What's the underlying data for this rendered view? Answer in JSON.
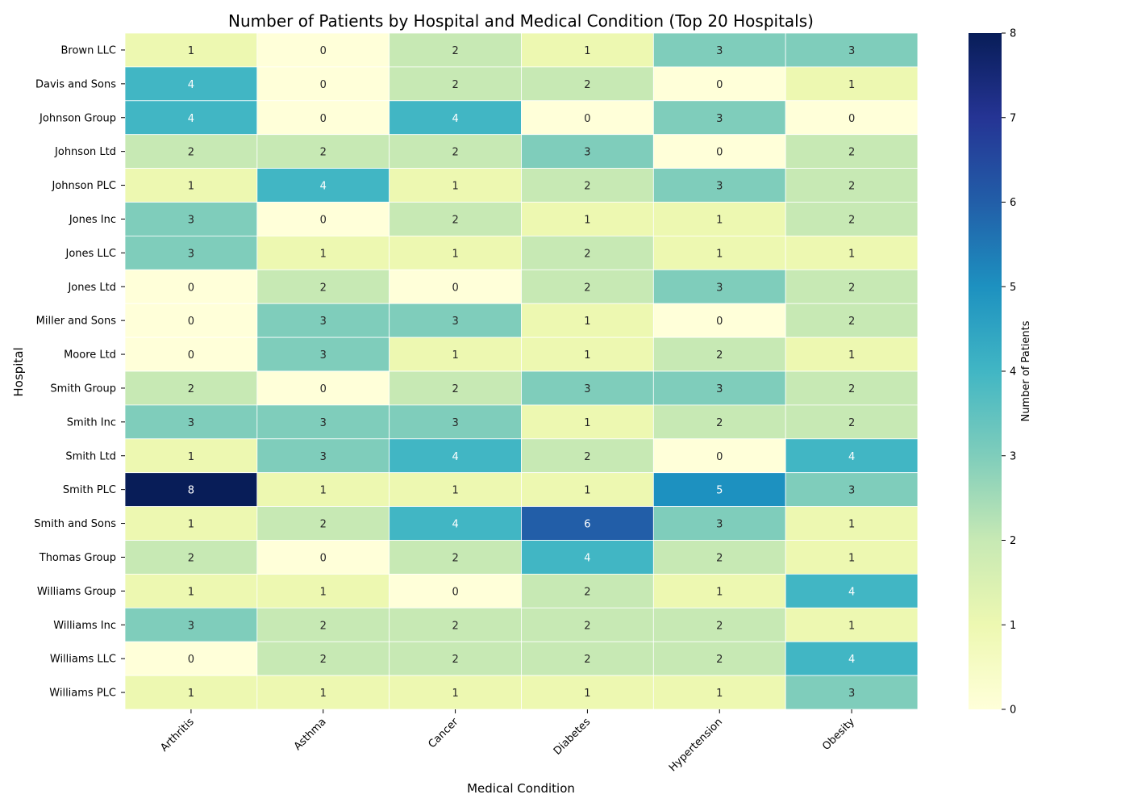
{
  "chart_data": {
    "type": "heatmap",
    "title": "Number of Patients by Hospital and Medical Condition (Top 20 Hospitals)",
    "xlabel": "Medical Condition",
    "ylabel": "Hospital",
    "colorbar_label": "Number of Patients",
    "colormap": "YlGnBu",
    "color_range": [
      0,
      8
    ],
    "colorbar_ticks": [
      "0",
      "1",
      "2",
      "3",
      "4",
      "5",
      "6",
      "7",
      "8"
    ],
    "annotated": true,
    "x_categories": [
      "Arthritis",
      "Asthma",
      "Cancer",
      "Diabetes",
      "Hypertension",
      "Obesity"
    ],
    "y_categories": [
      "Brown LLC",
      "Davis and Sons",
      "Johnson Group",
      "Johnson Ltd",
      "Johnson PLC",
      "Jones Inc",
      "Jones LLC",
      "Jones Ltd",
      "Miller and Sons",
      "Moore Ltd",
      "Smith Group",
      "Smith Inc",
      "Smith Ltd",
      "Smith PLC",
      "Smith and Sons",
      "Thomas Group",
      "Williams Group",
      "Williams Inc",
      "Williams LLC",
      "Williams PLC"
    ],
    "values": [
      [
        1,
        0,
        2,
        1,
        3,
        3
      ],
      [
        4,
        0,
        2,
        2,
        0,
        1
      ],
      [
        4,
        0,
        4,
        0,
        3,
        0
      ],
      [
        2,
        2,
        2,
        3,
        0,
        2
      ],
      [
        1,
        4,
        1,
        2,
        3,
        2
      ],
      [
        3,
        0,
        2,
        1,
        1,
        2
      ],
      [
        3,
        1,
        1,
        2,
        1,
        1
      ],
      [
        0,
        2,
        0,
        2,
        3,
        2
      ],
      [
        0,
        3,
        3,
        1,
        0,
        2
      ],
      [
        0,
        3,
        1,
        1,
        2,
        1
      ],
      [
        2,
        0,
        2,
        3,
        3,
        2
      ],
      [
        3,
        3,
        3,
        1,
        2,
        2
      ],
      [
        1,
        3,
        4,
        2,
        0,
        4
      ],
      [
        8,
        1,
        1,
        1,
        5,
        3
      ],
      [
        1,
        2,
        4,
        6,
        3,
        1
      ],
      [
        2,
        0,
        2,
        4,
        2,
        1
      ],
      [
        1,
        1,
        0,
        2,
        1,
        4
      ],
      [
        3,
        2,
        2,
        2,
        2,
        1
      ],
      [
        0,
        2,
        2,
        2,
        2,
        4
      ],
      [
        1,
        1,
        1,
        1,
        1,
        3
      ]
    ],
    "cell_colors": {
      "0": "#ffffd9",
      "1": "#edf8b1",
      "2": "#c7e9b4",
      "3": "#7fcdbb",
      "4": "#41b6c4",
      "5": "#1d91c0",
      "6": "#225ea8",
      "7": "#253494",
      "8": "#081d58"
    },
    "colorbar_gradient": [
      "#ffffd9",
      "#edf8b1",
      "#c7e9b4",
      "#7fcdbb",
      "#41b6c4",
      "#1d91c0",
      "#225ea8",
      "#253494",
      "#081d58"
    ]
  }
}
